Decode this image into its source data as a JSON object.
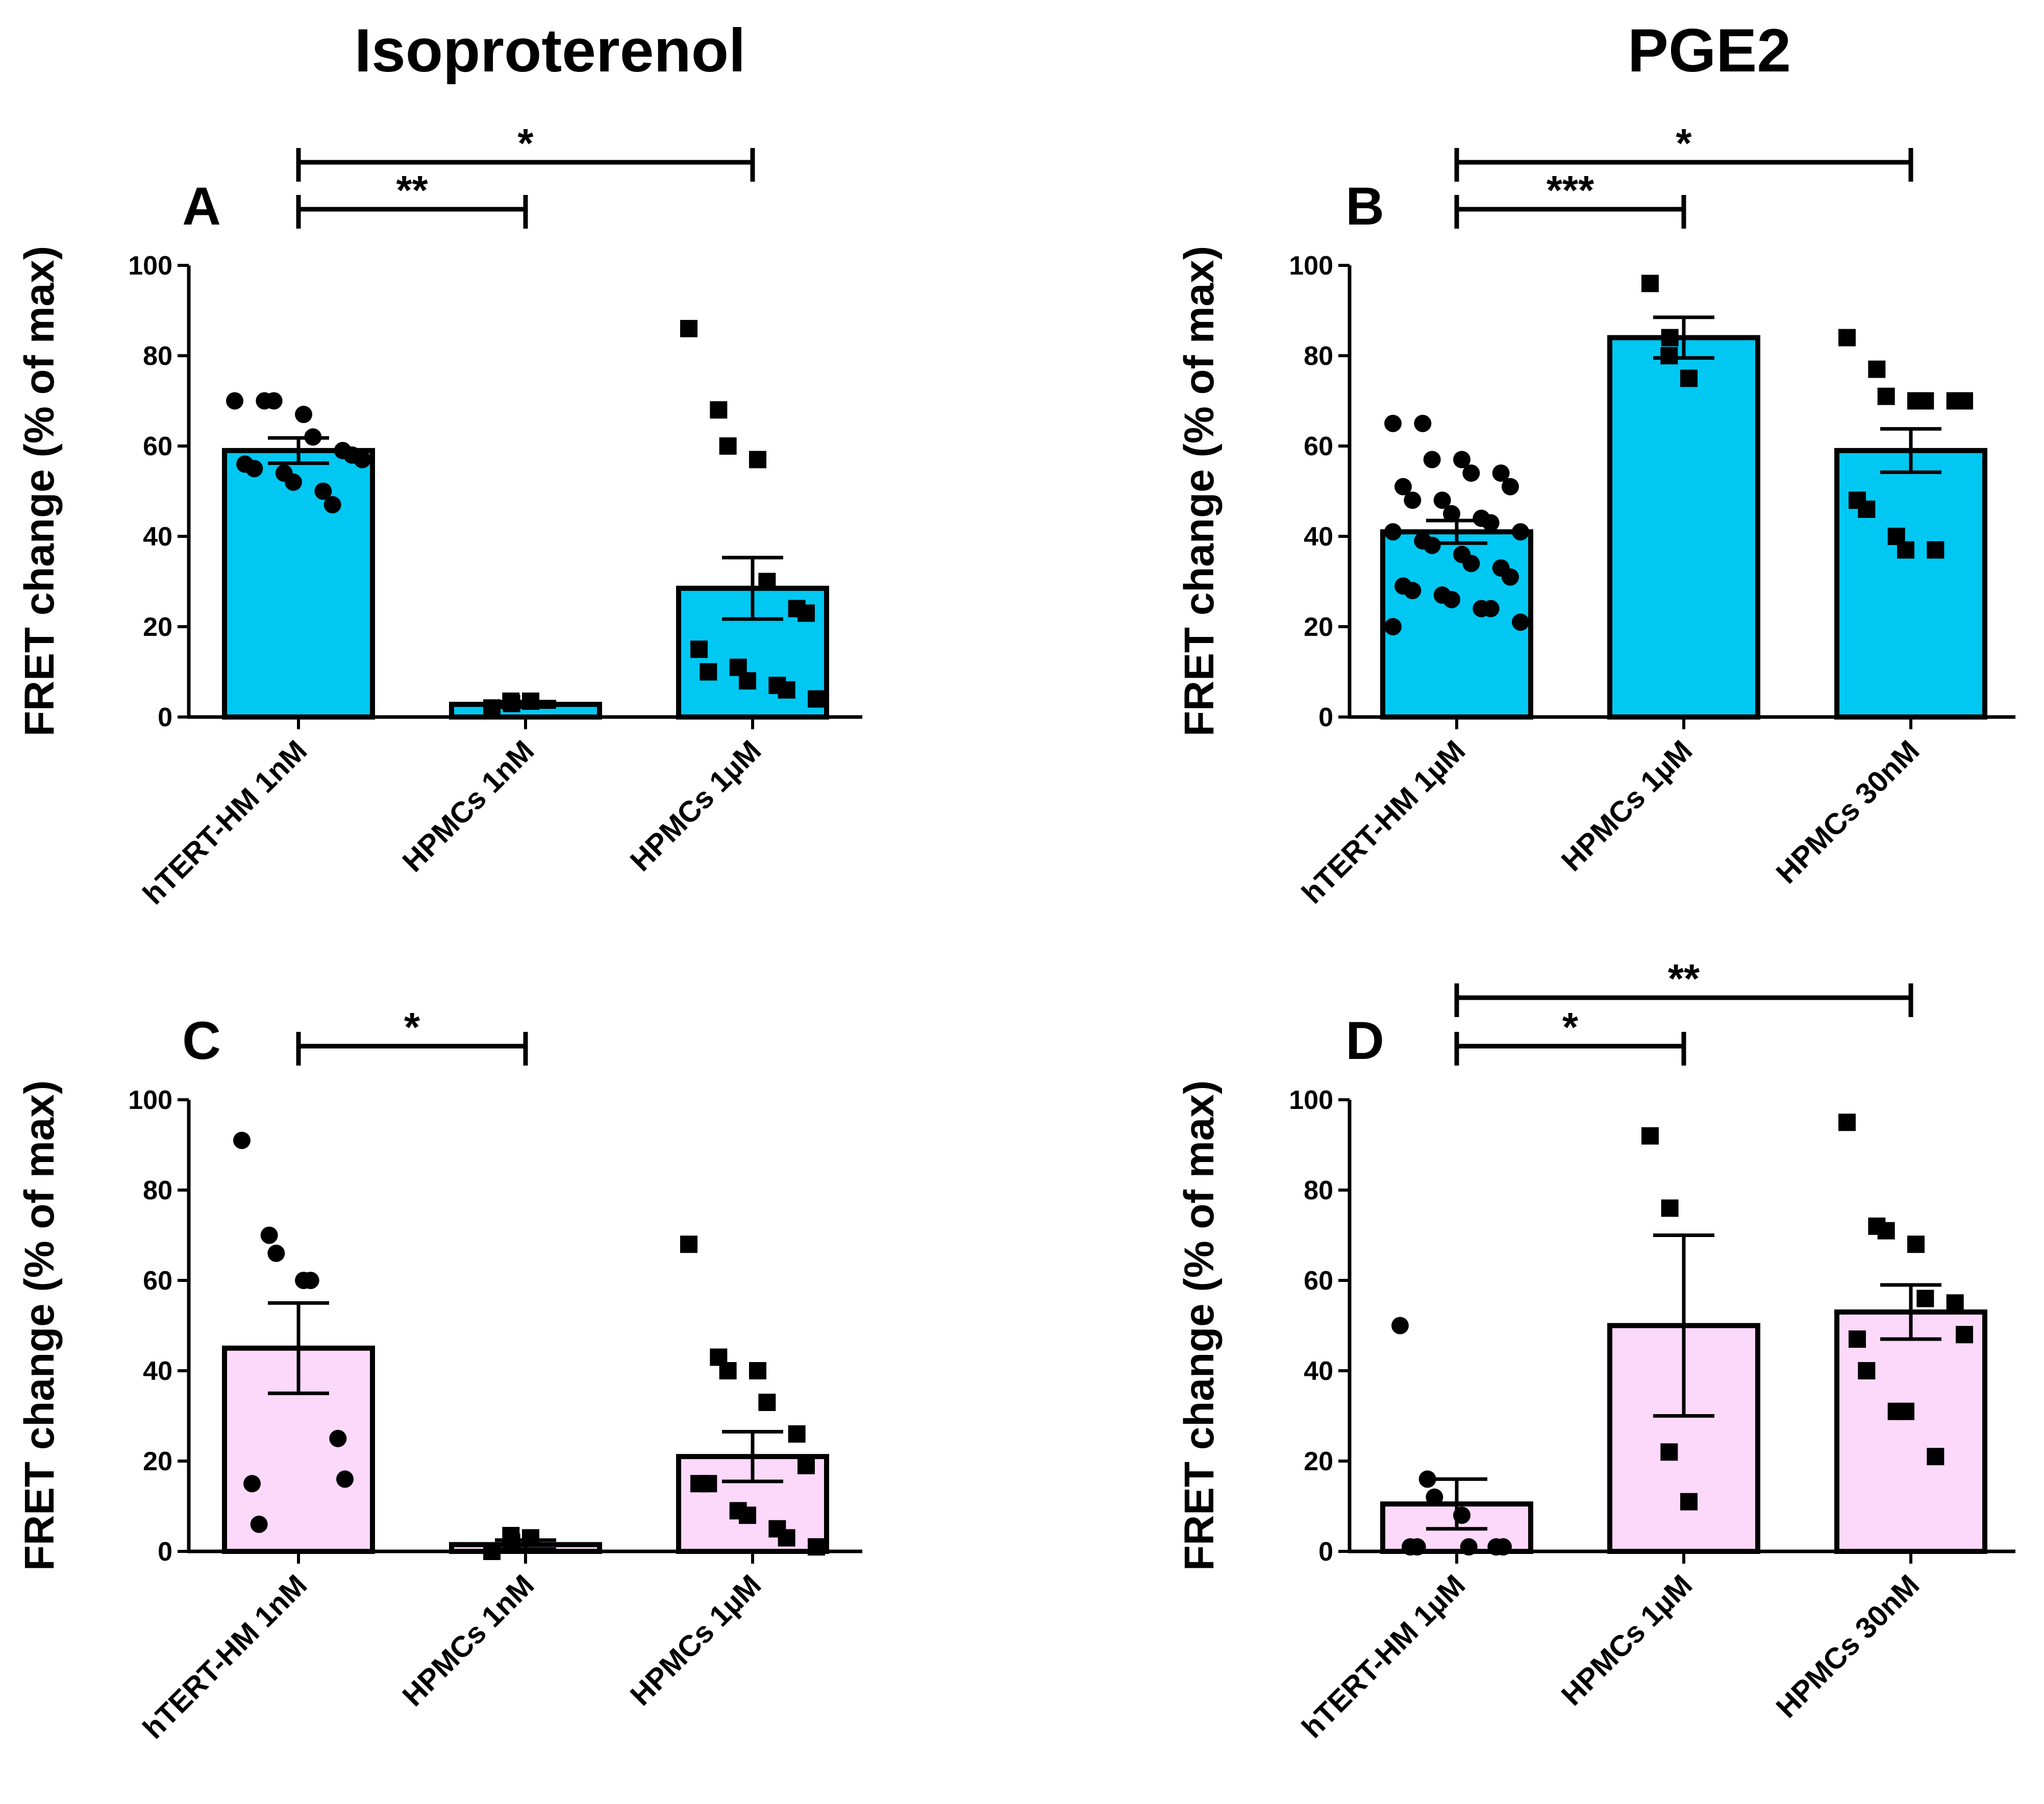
{
  "column_titles": [
    "Isoproterenol",
    "PGE2"
  ],
  "colors": {
    "cyan_fill": "#00c8f2",
    "pink_fill": "#fcd8fb",
    "ink": "#000000"
  },
  "chart_data": [
    {
      "panel": "A",
      "type": "bar",
      "column": "Isoproterenol",
      "ylabel": "FRET change (% of max)",
      "ylim": [
        0,
        100
      ],
      "yticks": [
        0,
        20,
        40,
        60,
        80,
        100
      ],
      "categories": [
        "hTERT-HM 1nM",
        "HPMCs 1nM",
        "HPMCs 1µM"
      ],
      "values": [
        59,
        2.8,
        28.5
      ],
      "errors": [
        2.8,
        0.6,
        6.8
      ],
      "markers": [
        "circle",
        "square",
        "square"
      ],
      "points": [
        [
          70,
          70,
          70,
          67,
          62,
          59,
          58,
          56,
          55,
          54,
          52,
          50,
          47,
          57
        ],
        [
          2,
          3,
          3.5,
          3.5
        ],
        [
          86,
          68,
          60,
          57,
          30,
          24,
          23,
          15,
          10,
          11,
          8,
          7,
          6,
          4
        ]
      ],
      "significance": [
        {
          "from": 0,
          "to": 1,
          "label": "**"
        },
        {
          "from": 0,
          "to": 2,
          "label": "*"
        }
      ]
    },
    {
      "panel": "B",
      "type": "bar",
      "column": "PGE2",
      "ylabel": "FRET change (% of max)",
      "ylim": [
        0,
        100
      ],
      "yticks": [
        0,
        20,
        40,
        60,
        80,
        100
      ],
      "categories": [
        "hTERT-HM 1µM",
        "HPMCs 1µM",
        "HPMCs 30nM"
      ],
      "values": [
        41,
        84,
        59
      ],
      "errors": [
        2.5,
        4.5,
        4.8
      ],
      "markers": [
        "circle",
        "square",
        "square"
      ],
      "points": [
        [
          65,
          65,
          57,
          57,
          54,
          54,
          51,
          51,
          48,
          48,
          45,
          44,
          43,
          41,
          41,
          39,
          38,
          36,
          34,
          33,
          31,
          29,
          28,
          27,
          26,
          24,
          24,
          21,
          20
        ],
        [
          96,
          84,
          80,
          75
        ],
        [
          84,
          77,
          71,
          70,
          70,
          70,
          70,
          48,
          46,
          40,
          37,
          37
        ]
      ],
      "significance": [
        {
          "from": 0,
          "to": 1,
          "label": "***"
        },
        {
          "from": 0,
          "to": 2,
          "label": "*"
        }
      ]
    },
    {
      "panel": "C",
      "type": "bar",
      "column": "Isoproterenol",
      "ylabel": "FRET change (% of max)",
      "ylim": [
        0,
        100
      ],
      "yticks": [
        0,
        20,
        40,
        60,
        80,
        100
      ],
      "categories": [
        "hTERT-HM 1nM",
        "HPMCs 1nM",
        "HPMCs 1µM"
      ],
      "values": [
        45,
        1.5,
        21
      ],
      "errors": [
        10,
        1,
        5.5
      ],
      "markers": [
        "circle",
        "square",
        "square"
      ],
      "points": [
        [
          91,
          70,
          66,
          60,
          60,
          25,
          16,
          15,
          6
        ],
        [
          0,
          2,
          3.5,
          3
        ],
        [
          68,
          43,
          40,
          40,
          33,
          26,
          19,
          15,
          15,
          9,
          8,
          5,
          3,
          1
        ]
      ],
      "significance": [
        {
          "from": 0,
          "to": 1,
          "label": "*"
        }
      ]
    },
    {
      "panel": "D",
      "type": "bar",
      "column": "PGE2",
      "ylabel": "FRET change (% of max)",
      "ylim": [
        0,
        100
      ],
      "yticks": [
        0,
        20,
        40,
        60,
        80,
        100
      ],
      "categories": [
        "hTERT-HM 1µM",
        "HPMCs 1µM",
        "HPMCs 30nM"
      ],
      "values": [
        10.5,
        50,
        53
      ],
      "errors": [
        5.5,
        20,
        6
      ],
      "markers": [
        "circle",
        "square",
        "square"
      ],
      "points": [
        [
          50,
          16,
          12,
          8,
          1,
          1,
          1,
          1,
          1
        ],
        [
          92,
          76,
          22,
          11
        ],
        [
          95,
          72,
          71,
          68,
          56,
          55,
          48,
          47,
          40,
          31,
          31,
          21
        ]
      ],
      "significance": [
        {
          "from": 0,
          "to": 1,
          "label": "*"
        },
        {
          "from": 0,
          "to": 2,
          "label": "**"
        }
      ]
    }
  ]
}
